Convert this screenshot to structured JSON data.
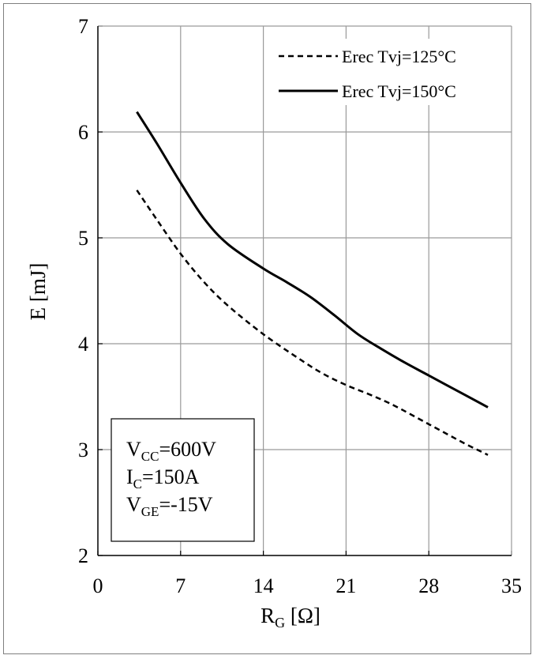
{
  "chart_data": {
    "type": "line",
    "xlabel": {
      "main": "R",
      "sub": "G",
      "unit": " [Ω]"
    },
    "ylabel": "E [mJ]",
    "xlim": [
      0,
      35
    ],
    "ylim": [
      2,
      7
    ],
    "xticks": [
      "0",
      "7",
      "14",
      "21",
      "28",
      "35"
    ],
    "yticks": [
      "2",
      "3",
      "4",
      "5",
      "6",
      "7"
    ],
    "grid": true,
    "legend_position": "top-right",
    "series": [
      {
        "name": "Erec Tvj=125°C",
        "style": "dashed",
        "color": "#000000",
        "x": [
          3.3,
          5,
          7,
          9,
          11,
          14,
          17,
          19,
          21,
          23,
          25,
          28,
          31,
          33
        ],
        "y": [
          5.45,
          5.17,
          4.85,
          4.58,
          4.36,
          4.09,
          3.86,
          3.72,
          3.61,
          3.52,
          3.42,
          3.24,
          3.06,
          2.95
        ]
      },
      {
        "name": "Erec Tvj=150°C",
        "style": "solid",
        "color": "#000000",
        "x": [
          3.3,
          5,
          7,
          9,
          11,
          14,
          16,
          18,
          20,
          22,
          24,
          26,
          28,
          31,
          33
        ],
        "y": [
          6.19,
          5.89,
          5.52,
          5.18,
          4.94,
          4.71,
          4.58,
          4.44,
          4.27,
          4.09,
          3.95,
          3.82,
          3.7,
          3.52,
          3.4
        ]
      }
    ],
    "annotation_box": {
      "lines": [
        {
          "main": "V",
          "sub": "CC",
          "rest": "=600V"
        },
        {
          "main": "I",
          "sub": "C",
          "rest": "=150A"
        },
        {
          "main": "V",
          "sub": "GE",
          "rest": "=-15V"
        }
      ]
    }
  }
}
